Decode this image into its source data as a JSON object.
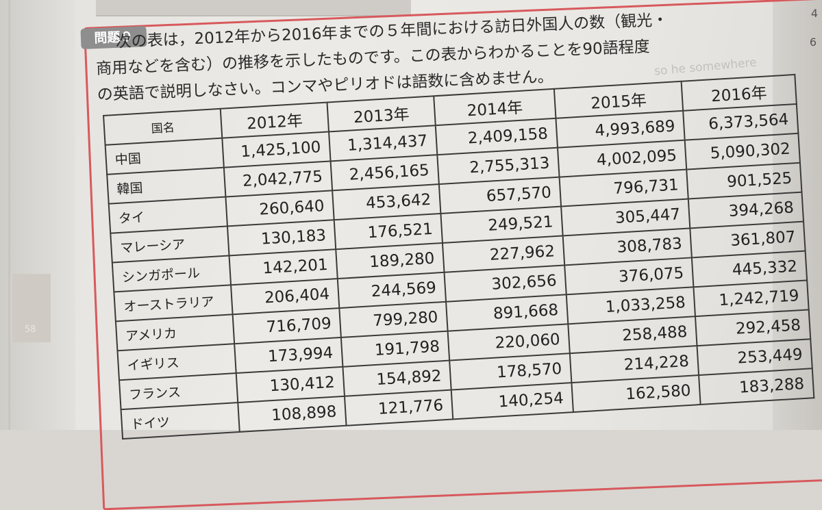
{
  "problem_label": "問題９",
  "statement_lines": [
    "次の表は，2012年から2016年までの５年間における訪日外国人の数（観光・",
    "商用などを含む）の推移を示したものです。この表からわかることを90語程度",
    "の英語で説明しなさい。コンマやピリオドは語数に含めません。"
  ],
  "ghost_text": "so he somewhere",
  "margin_numbers": {
    "top_right": "4",
    "right": "6",
    "left_tab": "58"
  },
  "table": {
    "header": {
      "country": "国名",
      "years": [
        "2012年",
        "2013年",
        "2014年",
        "2015年",
        "2016年"
      ]
    },
    "rows": [
      {
        "name": "中国",
        "values": [
          "1,425,100",
          "1,314,437",
          "2,409,158",
          "4,993,689",
          "6,373,564"
        ]
      },
      {
        "name": "韓国",
        "values": [
          "2,042,775",
          "2,456,165",
          "2,755,313",
          "4,002,095",
          "5,090,302"
        ]
      },
      {
        "name": "タイ",
        "values": [
          "260,640",
          "453,642",
          "657,570",
          "796,731",
          "901,525"
        ]
      },
      {
        "name": "マレーシア",
        "values": [
          "130,183",
          "176,521",
          "249,521",
          "305,447",
          "394,268"
        ]
      },
      {
        "name": "シンガポール",
        "values": [
          "142,201",
          "189,280",
          "227,962",
          "308,783",
          "361,807"
        ]
      },
      {
        "name": "オーストラリア",
        "values": [
          "206,404",
          "244,569",
          "302,656",
          "376,075",
          "445,332"
        ]
      },
      {
        "name": "アメリカ",
        "values": [
          "716,709",
          "799,280",
          "891,668",
          "1,033,258",
          "1,242,719"
        ]
      },
      {
        "name": "イギリス",
        "values": [
          "173,994",
          "191,798",
          "220,060",
          "258,488",
          "292,458"
        ]
      },
      {
        "name": "フランス",
        "values": [
          "130,412",
          "154,892",
          "178,570",
          "214,228",
          "253,449"
        ]
      },
      {
        "name": "ドイツ",
        "values": [
          "108,898",
          "121,776",
          "140,254",
          "162,580",
          "183,288"
        ]
      }
    ]
  }
}
